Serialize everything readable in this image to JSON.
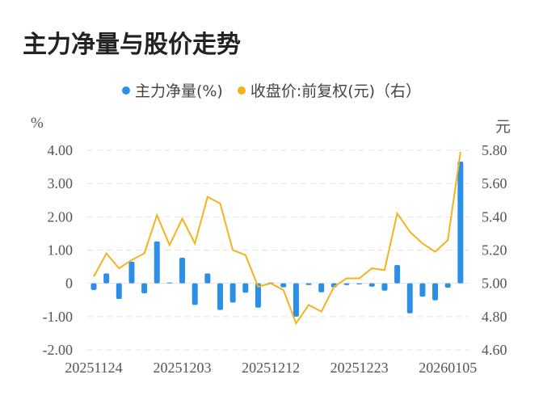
{
  "title": "主力净量与股价走势",
  "legend": [
    {
      "label": "主力净量(%)",
      "color": "#2b8fe5"
    },
    {
      "label": "收盘价:前复权(元)（右）",
      "color": "#f5b31b"
    }
  ],
  "axes": {
    "left_unit": "%",
    "right_unit": "元"
  },
  "chart_data": {
    "type": "bar+line",
    "title": "主力净量与股价走势",
    "x": [
      "20251124",
      "20251125",
      "20251126",
      "20251127",
      "20251128",
      "20251201",
      "20251202",
      "20251203",
      "20251204",
      "20251205",
      "20251208",
      "20251209",
      "20251210",
      "20251211",
      "20251212",
      "20251215",
      "20251216",
      "20251217",
      "20251218",
      "20251219",
      "20251222",
      "20251223",
      "20251224",
      "20251225",
      "20251226",
      "20251229",
      "20251230",
      "20251231",
      "20260105",
      "20260106"
    ],
    "x_tick_labels": [
      "20251124",
      "20251203",
      "20251212",
      "20251223",
      "20260105"
    ],
    "x_tick_indices": [
      0,
      7,
      14,
      21,
      28
    ],
    "series": [
      {
        "name": "主力净量(%)",
        "type": "bar",
        "axis": "left",
        "color": "#2b8fe5",
        "values": [
          -0.2,
          0.3,
          -0.47,
          0.65,
          -0.3,
          1.26,
          0.02,
          0.77,
          -0.65,
          0.3,
          -0.8,
          -0.58,
          -0.28,
          -0.73,
          0.0,
          -0.12,
          -1.0,
          -0.05,
          -0.27,
          -0.12,
          -0.05,
          -0.03,
          -0.1,
          -0.22,
          0.55,
          -0.9,
          -0.4,
          -0.51,
          -0.13,
          3.66
        ]
      },
      {
        "name": "收盘价:前复权(元)（右）",
        "type": "line",
        "axis": "right",
        "color": "#f5b31b",
        "values": [
          5.04,
          5.18,
          5.09,
          5.14,
          5.18,
          5.41,
          5.23,
          5.39,
          5.24,
          5.52,
          5.48,
          5.2,
          5.17,
          4.98,
          5.0,
          4.96,
          4.76,
          4.87,
          4.83,
          4.98,
          5.03,
          5.03,
          5.09,
          5.08,
          5.42,
          5.31,
          5.24,
          5.19,
          5.26,
          5.79
        ]
      }
    ],
    "ylabel_left": "%",
    "ylabel_right": "元",
    "ylim_left": [
      -2.0,
      4.0
    ],
    "ylim_right": [
      4.6,
      5.8
    ],
    "yticks_left": [
      "4.00",
      "3.00",
      "2.00",
      "1.00",
      "0",
      "-1.00",
      "-2.00"
    ],
    "yticks_right": [
      "5.80",
      "5.60",
      "5.40",
      "5.20",
      "5.00",
      "4.80",
      "4.60"
    ],
    "grid": true,
    "legend_position": "top"
  }
}
